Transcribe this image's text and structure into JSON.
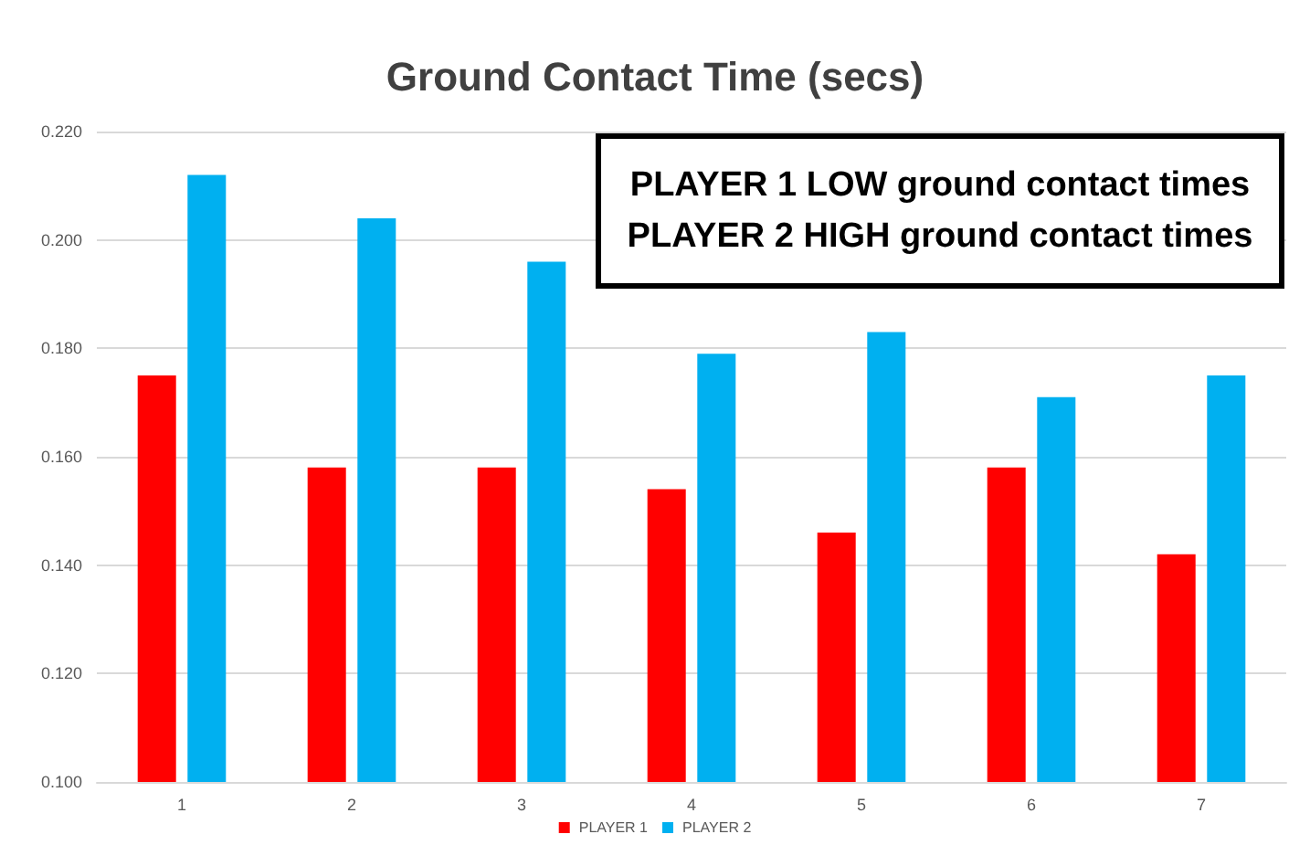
{
  "chart_data": {
    "type": "bar",
    "title": "Ground Contact Time (secs)",
    "categories": [
      "1",
      "2",
      "3",
      "4",
      "5",
      "6",
      "7"
    ],
    "series": [
      {
        "name": "PLAYER 1",
        "color": "#ff0000",
        "values": [
          0.175,
          0.158,
          0.158,
          0.154,
          0.146,
          0.158,
          0.142
        ]
      },
      {
        "name": "PLAYER 2",
        "color": "#00b0f0",
        "values": [
          0.212,
          0.204,
          0.196,
          0.179,
          0.183,
          0.171,
          0.175
        ]
      }
    ],
    "ylim": [
      0.1,
      0.22
    ],
    "yticks": [
      {
        "value": 0.1,
        "label": "0.100"
      },
      {
        "value": 0.12,
        "label": "0.120"
      },
      {
        "value": 0.14,
        "label": "0.140"
      },
      {
        "value": 0.16,
        "label": "0.160"
      },
      {
        "value": 0.18,
        "label": "0.180"
      },
      {
        "value": 0.2,
        "label": "0.200"
      },
      {
        "value": 0.22,
        "label": "0.220"
      }
    ],
    "grid": true,
    "legend": "bottom",
    "annotations": [
      "PLAYER 1 LOW ground contact times",
      "PLAYER 2 HIGH ground contact times"
    ]
  }
}
